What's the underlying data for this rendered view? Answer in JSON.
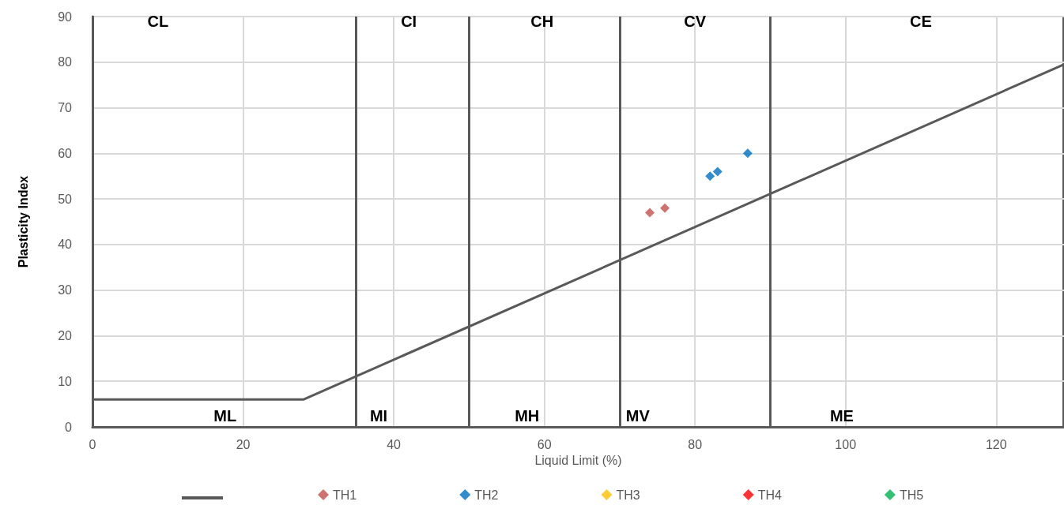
{
  "chart_data": {
    "type": "scatter",
    "xlabel": "Liquid Limit (%)",
    "ylabel": "Plasticity Index",
    "xlim": [
      0,
      129
    ],
    "ylim": [
      0,
      90
    ],
    "xticks": [
      0,
      20,
      40,
      60,
      80,
      100,
      120
    ],
    "yticks": [
      0,
      10,
      20,
      30,
      40,
      50,
      60,
      70,
      80,
      90
    ],
    "grid": true,
    "legend": "bottom",
    "marker": "diamond",
    "series": [
      {
        "type": "line",
        "color": "#595959",
        "x": [
          0,
          28,
          129
        ],
        "values": [
          6,
          6,
          79.5
        ],
        "marker": "none"
      },
      {
        "name": "TH1",
        "color": "#c0504d",
        "x": [
          74,
          76
        ],
        "values": [
          47,
          48
        ]
      },
      {
        "name": "TH2",
        "color": "#0070c0",
        "x": [
          82,
          83,
          87
        ],
        "values": [
          55,
          56,
          60
        ]
      },
      {
        "name": "TH3",
        "color": "#ffc000"
      },
      {
        "name": "TH4",
        "color": "#ff0000"
      },
      {
        "name": "TH5",
        "color": "#00b050"
      }
    ],
    "ref_lines": [
      {
        "axis": "x",
        "value": 35,
        "color": "#595959"
      },
      {
        "axis": "x",
        "value": 50,
        "color": "#595959"
      },
      {
        "axis": "x",
        "value": 70,
        "color": "#595959"
      },
      {
        "axis": "x",
        "value": 90,
        "color": "#595959"
      }
    ],
    "annotations": [
      "CL",
      "CI",
      "CH",
      "CV",
      "CE",
      "ML",
      "MI",
      "MH",
      "MV",
      "ME"
    ]
  }
}
